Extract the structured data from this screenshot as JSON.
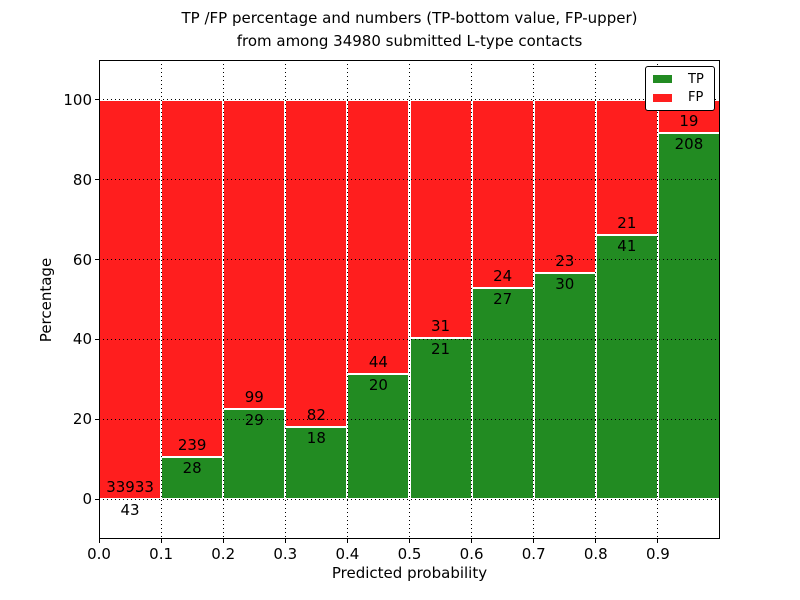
{
  "chart_data": {
    "type": "bar",
    "stacked": true,
    "title_line1": "TP /FP percentage and numbers (TP-bottom value, FP-upper)",
    "title_line2": "from among 34980 submitted L-type contacts",
    "xlabel": "Predicted probability",
    "ylabel": "Percentage",
    "xlim": [
      0.0,
      1.0
    ],
    "ylim": [
      -10,
      110
    ],
    "x_tick_values": [
      0.0,
      0.1,
      0.2,
      0.3,
      0.4,
      0.5,
      0.6,
      0.7,
      0.8,
      0.9
    ],
    "x_tick_labels": [
      "0.0",
      "0.1",
      "0.2",
      "0.3",
      "0.4",
      "0.5",
      "0.6",
      "0.7",
      "0.8",
      "0.9"
    ],
    "y_tick_values": [
      0,
      20,
      40,
      60,
      80,
      100
    ],
    "y_tick_labels": [
      "0",
      "20",
      "40",
      "60",
      "80",
      "100"
    ],
    "grid": "dotted",
    "bar_unit": "percent of bin total (TP% bottom, FP% top, stacked to 100)",
    "bins": [
      {
        "range": [
          0.0,
          0.1
        ],
        "tp": 43,
        "fp": 33933
      },
      {
        "range": [
          0.1,
          0.2
        ],
        "tp": 28,
        "fp": 239
      },
      {
        "range": [
          0.2,
          0.3
        ],
        "tp": 29,
        "fp": 99
      },
      {
        "range": [
          0.3,
          0.4
        ],
        "tp": 18,
        "fp": 82
      },
      {
        "range": [
          0.4,
          0.5
        ],
        "tp": 20,
        "fp": 44
      },
      {
        "range": [
          0.5,
          0.6
        ],
        "tp": 21,
        "fp": 31
      },
      {
        "range": [
          0.6,
          0.7
        ],
        "tp": 27,
        "fp": 24
      },
      {
        "range": [
          0.7,
          0.8
        ],
        "tp": 30,
        "fp": 23
      },
      {
        "range": [
          0.8,
          0.9
        ],
        "tp": 41,
        "fp": 21
      },
      {
        "range": [
          0.9,
          1.0
        ],
        "tp": 208,
        "fp": 19
      }
    ],
    "legend": {
      "position": "upper right",
      "entries": [
        {
          "label": "TP",
          "color": "#228b22"
        },
        {
          "label": "FP",
          "color": "#ff1e1e"
        }
      ]
    }
  }
}
